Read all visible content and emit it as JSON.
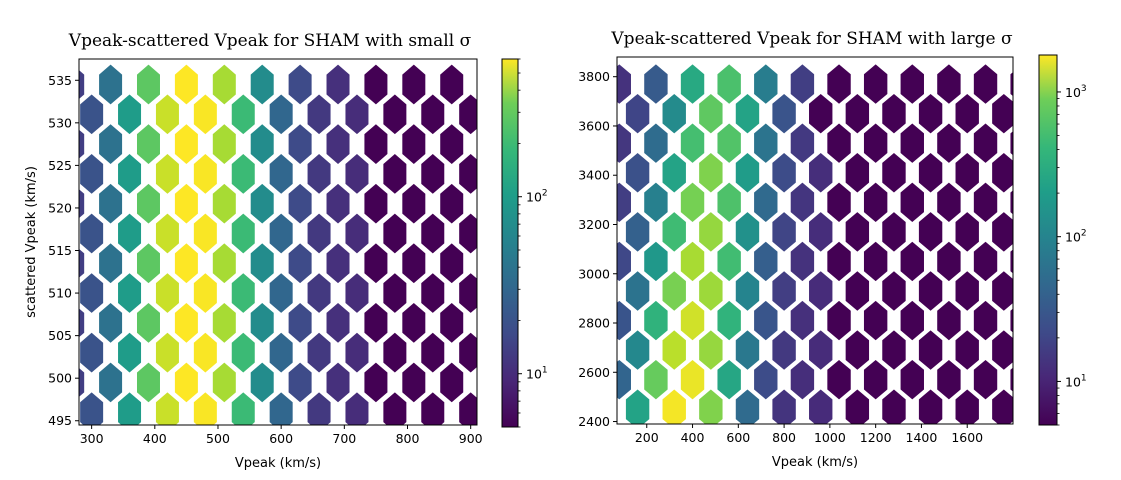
{
  "chart_data": [
    {
      "type": "heatmap",
      "subtype": "hexbin",
      "title": "Vpeak-scattered Vpeak for SHAM with small σ",
      "xlabel": "Vpeak (km/s)",
      "ylabel": "scattered Vpeak (km/s)",
      "xlim": [
        280,
        910
      ],
      "ylim": [
        494.5,
        537.5
      ],
      "xticks": [
        300,
        400,
        500,
        600,
        700,
        800,
        900
      ],
      "yticks": [
        495,
        500,
        505,
        510,
        515,
        520,
        525,
        530,
        535
      ],
      "hex_x_centers": [
        300,
        360,
        420,
        480,
        540,
        600,
        660,
        720,
        780,
        840,
        900
      ],
      "hex_y_centers": [
        496,
        499.5,
        503,
        506.5,
        510,
        513.5,
        517,
        520.5,
        524,
        527.5,
        531,
        534.5
      ],
      "peak_vpeak": 460,
      "occupied_vpeak_max": 720,
      "colorbar": {
        "scale": "log",
        "cmap": "viridis",
        "range": [
          5,
          600
        ],
        "tick_labels": [
          "10^1",
          "10^2"
        ],
        "tick_values": [
          10,
          100
        ]
      }
    },
    {
      "type": "heatmap",
      "subtype": "hexbin",
      "title": "Vpeak-scattered Vpeak for SHAM with large σ",
      "xlabel": "Vpeak (km/s)",
      "ylabel": "",
      "xlim": [
        70,
        1800
      ],
      "ylim": [
        2390,
        3880
      ],
      "xticks": [
        200,
        400,
        600,
        800,
        1000,
        1200,
        1400,
        1600
      ],
      "yticks": [
        2400,
        2600,
        2800,
        3000,
        3200,
        3400,
        3600,
        3800
      ],
      "hex_x_centers": [
        160,
        320,
        480,
        640,
        800,
        960,
        1120,
        1280,
        1440,
        1600
      ],
      "hex_y_centers": [
        2450,
        2570,
        2690,
        2810,
        2930,
        3050,
        3170,
        3290,
        3410,
        3530,
        3650,
        3770
      ],
      "peak_vpeak": 350,
      "occupied_vpeak_max": 1050,
      "colorbar": {
        "scale": "log",
        "cmap": "viridis",
        "range": [
          5,
          1800
        ],
        "tick_labels": [
          "10^1",
          "10^2",
          "10^3"
        ],
        "tick_values": [
          10,
          100,
          1000
        ]
      }
    }
  ]
}
